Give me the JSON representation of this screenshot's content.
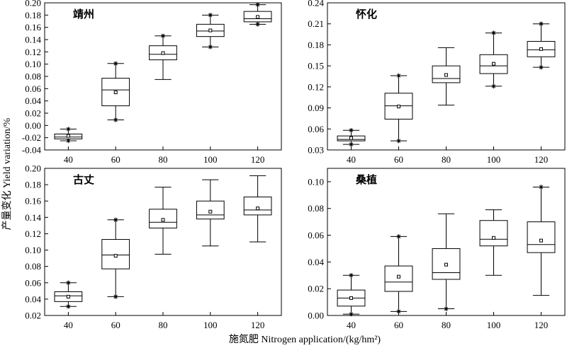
{
  "figure": {
    "xlabel": "施氮肥 Nitrogen application/(kg/hm²)",
    "ylabel": "产量变化 Yield variation/%"
  },
  "chart_data": [
    {
      "type": "box",
      "title": "靖州",
      "categories": [
        "40",
        "60",
        "80",
        "100",
        "120"
      ],
      "ylim": [
        -0.04,
        0.2
      ],
      "yticks": [
        "-0.04",
        "-0.02",
        "0.00",
        "0.02",
        "0.04",
        "0.06",
        "0.08",
        "0.10",
        "0.12",
        "0.14",
        "0.16",
        "0.18",
        "0.20"
      ],
      "boxes": [
        {
          "category": "40",
          "whisker_low": -0.025,
          "q1": -0.022,
          "median": -0.019,
          "q3": -0.014,
          "whisker_high": -0.006,
          "mean": -0.017,
          "outliers": [
            -0.025,
            -0.006
          ]
        },
        {
          "category": "60",
          "whisker_low": 0.009,
          "q1": 0.032,
          "median": 0.058,
          "q3": 0.077,
          "whisker_high": 0.101,
          "mean": 0.054,
          "outliers": [
            0.009,
            0.101
          ]
        },
        {
          "category": "80",
          "whisker_low": 0.075,
          "q1": 0.107,
          "median": 0.116,
          "q3": 0.13,
          "whisker_high": 0.146,
          "mean": 0.118,
          "outliers": [
            0.146
          ]
        },
        {
          "category": "100",
          "whisker_low": 0.128,
          "q1": 0.145,
          "median": 0.154,
          "q3": 0.165,
          "whisker_high": 0.18,
          "mean": 0.155,
          "outliers": [
            0.128,
            0.18
          ]
        },
        {
          "category": "120",
          "whisker_low": 0.165,
          "q1": 0.169,
          "median": 0.174,
          "q3": 0.186,
          "whisker_high": 0.197,
          "mean": 0.177,
          "outliers": [
            0.165,
            0.197
          ]
        }
      ]
    },
    {
      "type": "box",
      "title": "怀化",
      "categories": [
        "40",
        "60",
        "80",
        "100",
        "120"
      ],
      "ylim": [
        0.03,
        0.24
      ],
      "yticks": [
        "0.03",
        "0.06",
        "0.09",
        "0.12",
        "0.15",
        "0.18",
        "0.21",
        "0.24"
      ],
      "boxes": [
        {
          "category": "40",
          "whisker_low": 0.038,
          "q1": 0.043,
          "median": 0.045,
          "q3": 0.05,
          "whisker_high": 0.058,
          "mean": 0.047,
          "outliers": [
            0.038,
            0.058
          ]
        },
        {
          "category": "60",
          "whisker_low": 0.043,
          "q1": 0.074,
          "median": 0.093,
          "q3": 0.111,
          "whisker_high": 0.136,
          "mean": 0.092,
          "outliers": [
            0.043,
            0.136
          ]
        },
        {
          "category": "80",
          "whisker_low": 0.094,
          "q1": 0.126,
          "median": 0.132,
          "q3": 0.15,
          "whisker_high": 0.176,
          "mean": 0.137,
          "outliers": []
        },
        {
          "category": "100",
          "whisker_low": 0.121,
          "q1": 0.139,
          "median": 0.15,
          "q3": 0.166,
          "whisker_high": 0.197,
          "mean": 0.153,
          "outliers": [
            0.121,
            0.197
          ]
        },
        {
          "category": "120",
          "whisker_low": 0.148,
          "q1": 0.163,
          "median": 0.173,
          "q3": 0.185,
          "whisker_high": 0.21,
          "mean": 0.174,
          "outliers": [
            0.148,
            0.21
          ]
        }
      ]
    },
    {
      "type": "box",
      "title": "古丈",
      "categories": [
        "40",
        "60",
        "80",
        "100",
        "120"
      ],
      "ylim": [
        0.02,
        0.2
      ],
      "yticks": [
        "0.02",
        "0.04",
        "0.06",
        "0.08",
        "0.10",
        "0.12",
        "0.14",
        "0.16",
        "0.18",
        "0.20"
      ],
      "boxes": [
        {
          "category": "40",
          "whisker_low": 0.031,
          "q1": 0.037,
          "median": 0.044,
          "q3": 0.049,
          "whisker_high": 0.06,
          "mean": 0.043,
          "outliers": [
            0.031,
            0.06
          ]
        },
        {
          "category": "60",
          "whisker_low": 0.043,
          "q1": 0.077,
          "median": 0.094,
          "q3": 0.113,
          "whisker_high": 0.137,
          "mean": 0.093,
          "outliers": [
            0.043,
            0.137
          ]
        },
        {
          "category": "80",
          "whisker_low": 0.095,
          "q1": 0.127,
          "median": 0.134,
          "q3": 0.15,
          "whisker_high": 0.177,
          "mean": 0.137,
          "outliers": []
        },
        {
          "category": "100",
          "whisker_low": 0.105,
          "q1": 0.138,
          "median": 0.143,
          "q3": 0.16,
          "whisker_high": 0.186,
          "mean": 0.147,
          "outliers": []
        },
        {
          "category": "120",
          "whisker_low": 0.11,
          "q1": 0.143,
          "median": 0.149,
          "q3": 0.165,
          "whisker_high": 0.191,
          "mean": 0.151,
          "outliers": []
        }
      ]
    },
    {
      "type": "box",
      "title": "桑植",
      "categories": [
        "40",
        "60",
        "80",
        "100",
        "120"
      ],
      "ylim": [
        0.0,
        0.11
      ],
      "yticks": [
        "0.00",
        "0.02",
        "0.04",
        "0.06",
        "0.08",
        "0.10"
      ],
      "boxes": [
        {
          "category": "40",
          "whisker_low": 0.001,
          "q1": 0.007,
          "median": 0.013,
          "q3": 0.019,
          "whisker_high": 0.03,
          "mean": 0.013,
          "outliers": [
            0.001,
            0.03
          ]
        },
        {
          "category": "60",
          "whisker_low": 0.003,
          "q1": 0.018,
          "median": 0.025,
          "q3": 0.037,
          "whisker_high": 0.059,
          "mean": 0.029,
          "outliers": [
            0.003,
            0.059
          ]
        },
        {
          "category": "80",
          "whisker_low": 0.005,
          "q1": 0.027,
          "median": 0.032,
          "q3": 0.05,
          "whisker_high": 0.076,
          "mean": 0.038,
          "outliers": [
            0.005
          ]
        },
        {
          "category": "100",
          "whisker_low": 0.03,
          "q1": 0.052,
          "median": 0.057,
          "q3": 0.071,
          "whisker_high": 0.079,
          "mean": 0.058,
          "outliers": []
        },
        {
          "category": "120",
          "whisker_low": 0.015,
          "q1": 0.047,
          "median": 0.053,
          "q3": 0.07,
          "whisker_high": 0.096,
          "mean": 0.056,
          "outliers": [
            0.096
          ]
        }
      ]
    }
  ]
}
